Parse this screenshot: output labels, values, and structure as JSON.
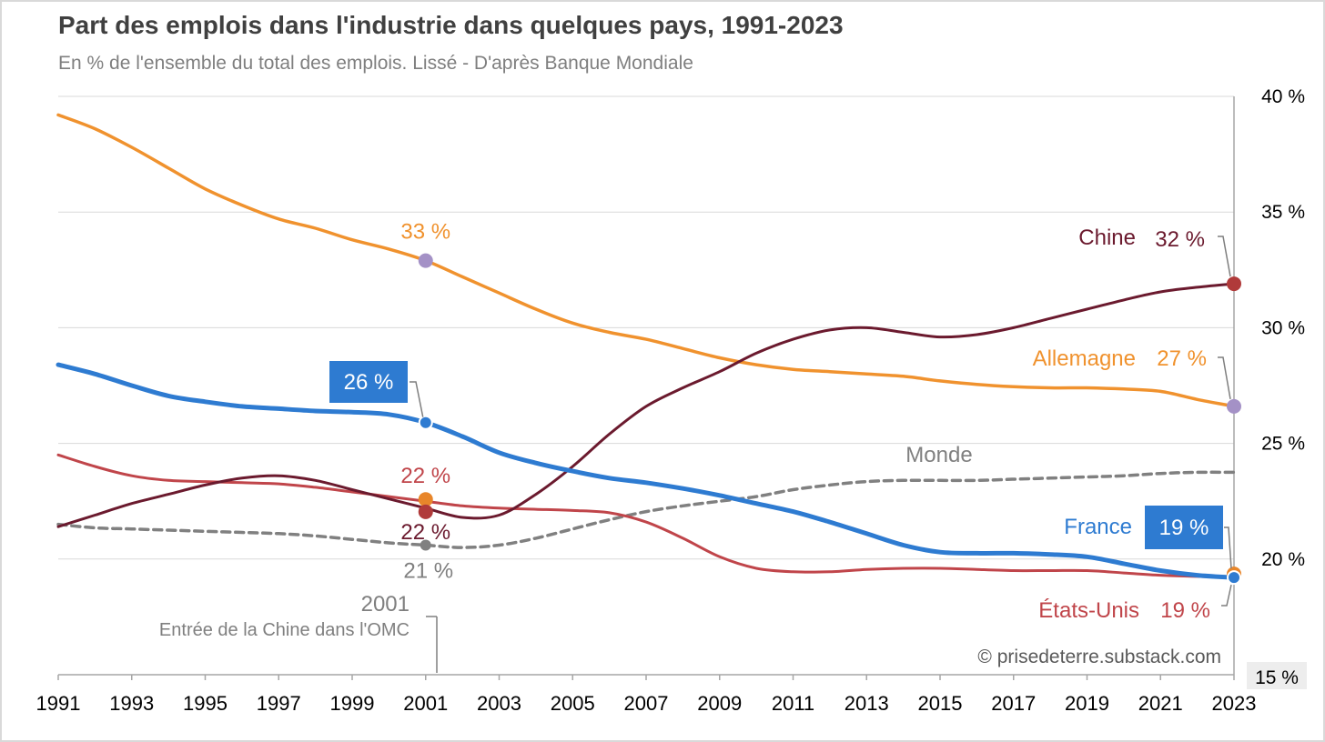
{
  "title": "Part des emplois dans l'industrie dans quelques pays, 1991-2023",
  "subtitle": "En % de l'ensemble du total des emplois. Lissé - D'après Banque Mondiale",
  "credit": "© prisedeterre.substack.com",
  "colors": {
    "chine": "#6b1a2e",
    "allemagne": "#f0922e",
    "france": "#2e7bd1",
    "etats_unis": "#c0454a",
    "monde": "#808080",
    "grid": "#d9d9d9",
    "axis": "#a6a6a6",
    "text": "#404040",
    "marker_violet": "#a491c6",
    "marker_orange": "#e8862a",
    "marker_red": "#b03a3a"
  },
  "event": {
    "year_label": "2001",
    "text": "Entrée de la Chine dans l'OMC"
  },
  "chart_data": {
    "type": "line",
    "title": "Part des emplois dans l'industrie dans quelques pays, 1991-2023",
    "subtitle": "En % de l'ensemble du total des emplois. Lissé - D'après Banque Mondiale",
    "xlabel": "",
    "ylabel": "",
    "xlim": [
      1991,
      2023
    ],
    "ylim": [
      15,
      40
    ],
    "grid": true,
    "y_axis_side": "right",
    "x_ticks": [
      "1991",
      "1993",
      "1995",
      "1997",
      "1999",
      "2001",
      "2003",
      "2005",
      "2007",
      "2009",
      "2011",
      "2013",
      "2015",
      "2017",
      "2019",
      "2021",
      "2023"
    ],
    "y_ticks": [
      "15 %",
      "20 %",
      "25 %",
      "30 %",
      "35 %",
      "40 %"
    ],
    "x": [
      1991,
      1992,
      1993,
      1994,
      1995,
      1996,
      1997,
      1998,
      1999,
      2000,
      2001,
      2002,
      2003,
      2004,
      2005,
      2006,
      2007,
      2008,
      2009,
      2010,
      2011,
      2012,
      2013,
      2014,
      2015,
      2016,
      2017,
      2018,
      2019,
      2020,
      2021,
      2022,
      2023
    ],
    "series": [
      {
        "key": "allemagne",
        "name": "Allemagne",
        "values": [
          39.2,
          38.6,
          37.8,
          36.9,
          36.0,
          35.3,
          34.7,
          34.3,
          33.8,
          33.4,
          32.9,
          32.2,
          31.5,
          30.8,
          30.2,
          29.8,
          29.5,
          29.1,
          28.7,
          28.4,
          28.2,
          28.1,
          28.0,
          27.9,
          27.7,
          27.55,
          27.45,
          27.4,
          27.4,
          27.35,
          27.25,
          26.9,
          26.6
        ],
        "start_label": "33 %",
        "start_year": 2001,
        "end_label": "27 %"
      },
      {
        "key": "chine",
        "name": "Chine",
        "values": [
          21.4,
          21.9,
          22.4,
          22.8,
          23.2,
          23.5,
          23.6,
          23.4,
          23.0,
          22.6,
          22.2,
          21.8,
          21.9,
          22.8,
          24.0,
          25.4,
          26.6,
          27.4,
          28.1,
          28.9,
          29.5,
          29.9,
          30.0,
          29.8,
          29.6,
          29.7,
          30.0,
          30.4,
          30.8,
          31.2,
          31.55,
          31.75,
          31.9
        ],
        "start_label": "22 %",
        "start_year": 2001,
        "end_label": "32 %"
      },
      {
        "key": "france",
        "name": "France",
        "values": [
          28.4,
          28.0,
          27.5,
          27.05,
          26.8,
          26.6,
          26.5,
          26.4,
          26.35,
          26.25,
          25.9,
          25.3,
          24.6,
          24.15,
          23.8,
          23.5,
          23.3,
          23.05,
          22.75,
          22.4,
          22.05,
          21.6,
          21.1,
          20.6,
          20.3,
          20.25,
          20.25,
          20.2,
          20.1,
          19.8,
          19.5,
          19.3,
          19.2
        ],
        "start_label": "26 %",
        "start_year": 2001,
        "end_label": "19 %"
      },
      {
        "key": "etats_unis",
        "name": "États-Unis",
        "values": [
          24.5,
          24.0,
          23.6,
          23.4,
          23.35,
          23.3,
          23.25,
          23.1,
          22.9,
          22.7,
          22.5,
          22.3,
          22.2,
          22.15,
          22.1,
          22.0,
          21.6,
          20.9,
          20.1,
          19.6,
          19.45,
          19.45,
          19.55,
          19.6,
          19.6,
          19.55,
          19.5,
          19.5,
          19.5,
          19.4,
          19.3,
          19.25,
          19.2
        ],
        "start_label": "22 %",
        "start_year": 2001,
        "end_label": "19 %"
      },
      {
        "key": "monde",
        "name": "Monde",
        "values": [
          21.5,
          21.35,
          21.3,
          21.25,
          21.2,
          21.15,
          21.1,
          21.0,
          20.85,
          20.7,
          20.6,
          20.5,
          20.6,
          20.9,
          21.3,
          21.7,
          22.05,
          22.3,
          22.5,
          22.7,
          23.0,
          23.2,
          23.35,
          23.4,
          23.4,
          23.4,
          23.45,
          23.5,
          23.55,
          23.6,
          23.7,
          23.75,
          23.75
        ],
        "start_label": "21 %",
        "start_year": 2001,
        "dashed": true
      }
    ]
  }
}
